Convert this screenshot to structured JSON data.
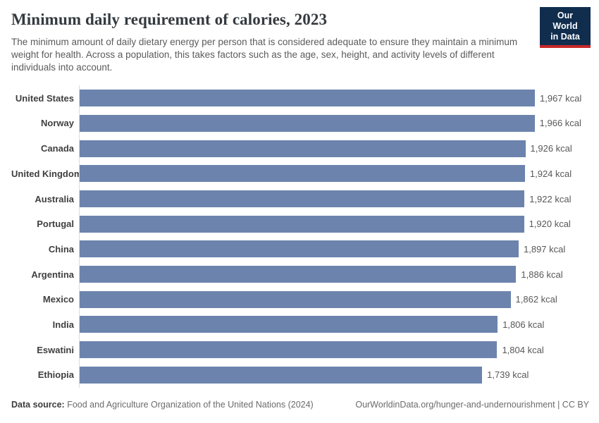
{
  "header": {
    "title": "Minimum daily requirement of calories, 2023",
    "subtitle": "The minimum amount of daily dietary energy per person that is considered adequate to ensure they maintain a minimum weight for health. Across a population, this takes factors such as the age, sex, height, and activity levels of different individuals into account.",
    "logo": {
      "line1": "Our World",
      "line2": "in Data"
    }
  },
  "chart_data": {
    "type": "bar",
    "orientation": "horizontal",
    "title": "Minimum daily requirement of calories, 2023",
    "unit": "kcal",
    "categories": [
      "United States",
      "Norway",
      "Canada",
      "United Kingdom",
      "Australia",
      "Portugal",
      "China",
      "Argentina",
      "Mexico",
      "India",
      "Eswatini",
      "Ethiopia"
    ],
    "values": [
      1967,
      1966,
      1926,
      1924,
      1922,
      1920,
      1897,
      1886,
      1862,
      1806,
      1804,
      1739
    ],
    "value_labels": [
      "1,967 kcal",
      "1,966 kcal",
      "1,926 kcal",
      "1,924 kcal",
      "1,922 kcal",
      "1,920 kcal",
      "1,897 kcal",
      "1,886 kcal",
      "1,862 kcal",
      "1,806 kcal",
      "1,804 kcal",
      "1,739 kcal"
    ],
    "xlim": [
      0,
      1967
    ],
    "grid": false,
    "legend": false,
    "bar_color": "#6c84ad",
    "axis_line_color": "#dcdcdc"
  },
  "footer": {
    "source_label": "Data source:",
    "source_text": " Food and Agriculture Organization of the United Nations (2024)",
    "link_text": "OurWorldinData.org/hunger-and-undernourishment | CC BY"
  },
  "colors": {
    "bar": "#6c84ad",
    "logo_background": "#102d4e",
    "logo_stripe": "#c62828",
    "title_text": "#343a40",
    "subtitle_text": "#5b5b5b"
  }
}
